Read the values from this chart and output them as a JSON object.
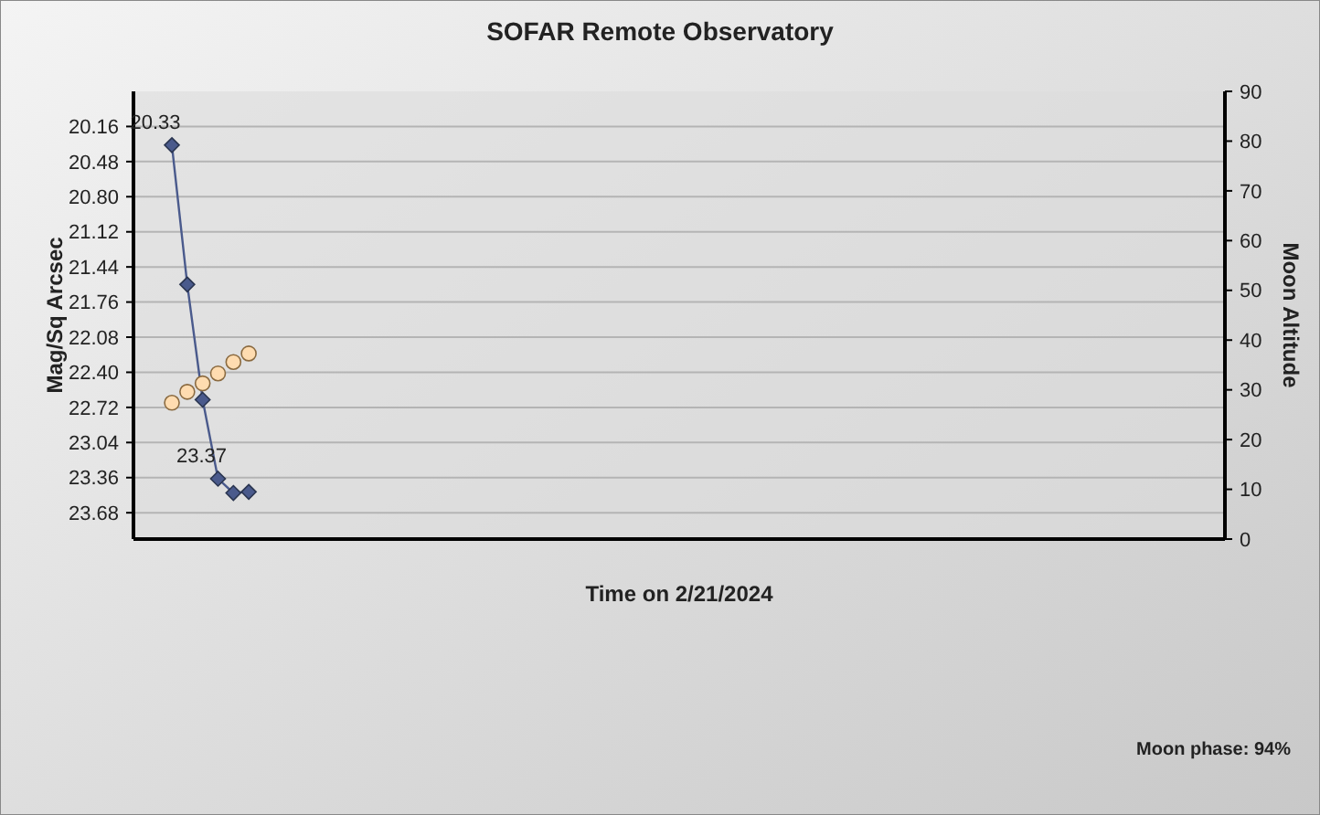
{
  "chart_data": {
    "type": "line",
    "title": "SOFAR Remote Observatory",
    "xlabel": "Time on 2/21/2024",
    "ylabel": "Mag/Sq Arcsec",
    "y2label": "Moon Altitude",
    "annotations": [
      "Moon phase: 94%"
    ],
    "categories": [
      null,
      null,
      null,
      null,
      null,
      null,
      null,
      null,
      null,
      null,
      null,
      null,
      null,
      null,
      null,
      null,
      null,
      null,
      null,
      null,
      null,
      null,
      null,
      null,
      null,
      null,
      null,
      null,
      null,
      null,
      null,
      null,
      null,
      null,
      null,
      null,
      null,
      null,
      null,
      null,
      null,
      null,
      null,
      null,
      null,
      null,
      null,
      null,
      null,
      null,
      null,
      null,
      null,
      null,
      null,
      null,
      null,
      null,
      null,
      null,
      null,
      null,
      null,
      null,
      null,
      null,
      null,
      null,
      null,
      null,
      null
    ],
    "series": [
      {
        "color": "#4a5a8c",
        "marker": "diamond",
        "values": [
          null,
          null,
          20.33,
          21.6,
          22.65,
          23.37,
          23.5,
          23.49,
          null,
          null,
          null,
          null,
          null,
          null,
          null,
          null,
          null,
          null,
          null,
          null,
          null,
          null,
          null,
          null,
          null,
          null,
          null,
          null,
          null,
          null,
          null,
          null,
          null,
          null,
          null,
          null,
          null,
          null,
          null,
          null,
          null,
          null,
          null,
          null,
          null,
          null,
          null,
          null,
          null,
          null,
          null,
          null,
          null,
          null,
          null,
          null,
          null,
          null,
          null,
          null,
          null,
          null,
          null,
          null,
          null,
          null,
          null,
          null,
          null,
          null,
          null
        ],
        "value_labels": [
          null,
          null,
          "20.33",
          null,
          null,
          "23.37",
          null,
          null,
          null,
          null,
          null,
          null,
          null,
          null,
          null,
          null,
          null,
          null,
          null,
          null,
          null,
          null,
          null,
          null,
          null,
          null,
          null,
          null,
          null,
          null,
          null,
          null,
          null,
          null,
          null,
          null,
          null,
          null,
          null,
          null,
          null,
          null,
          null,
          null,
          null,
          null,
          null,
          null,
          null,
          null,
          null,
          null,
          null,
          null,
          null,
          null,
          null,
          null,
          null,
          null,
          null,
          null,
          null,
          null,
          null,
          null,
          null,
          null,
          null,
          null,
          null
        ]
      },
      {
        "type": "scatter",
        "axis": "y2",
        "color": "#ffdcb0",
        "marker": "circle",
        "values": [
          null,
          null,
          27.4,
          29.6,
          31.3,
          33.3,
          35.6,
          37.3,
          null,
          null,
          null,
          null,
          null,
          null,
          null,
          null,
          null,
          null,
          null,
          null,
          null,
          null,
          null,
          null,
          null,
          null,
          null,
          null,
          null,
          null,
          null,
          null,
          null,
          null,
          null,
          null,
          null,
          null,
          null,
          null,
          null,
          null,
          null,
          null,
          null,
          null,
          null,
          null,
          null,
          null,
          null,
          null,
          null,
          null,
          null,
          null,
          null,
          null,
          null,
          null,
          null,
          null,
          null,
          null,
          null,
          null,
          null,
          null,
          null,
          null,
          null
        ]
      }
    ],
    "ylim": [
      23.92,
      19.84
    ],
    "yticks": [
      20.16,
      20.48,
      {
        "value": 20.8,
        "label": "20.80"
      },
      21.12,
      21.44,
      21.76,
      22.08,
      {
        "value": 22.4,
        "label": "22.40"
      },
      22.72,
      23.04,
      23.36,
      23.68
    ],
    "y2lim": [
      0,
      90
    ],
    "y2ticks": [
      0,
      10,
      20,
      30,
      40,
      50,
      60,
      70,
      80,
      90
    ],
    "grid": "y",
    "tick_labels": "y"
  }
}
